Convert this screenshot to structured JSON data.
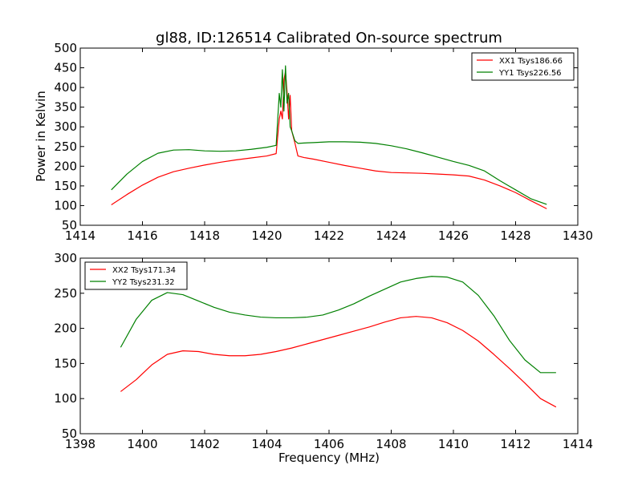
{
  "figure": {
    "title": "gl88, ID:126514 Calibrated On-source spectrum",
    "xlabel": "Frequency (MHz)",
    "ylabel": "Power in Kelvin"
  },
  "chart_data": [
    {
      "type": "line",
      "title": "gl88, ID:126514 Calibrated On-source spectrum",
      "xlabel": "",
      "ylabel": "Power in Kelvin",
      "xlim": [
        1414,
        1430
      ],
      "ylim": [
        50,
        500
      ],
      "xticks": [
        1414,
        1416,
        1418,
        1420,
        1422,
        1424,
        1426,
        1428,
        1430
      ],
      "yticks": [
        50,
        100,
        150,
        200,
        250,
        300,
        350,
        400,
        450,
        500
      ],
      "grid": false,
      "legend_position": "top-right",
      "series": [
        {
          "name": "XX1 Tsys186.66",
          "color": "#ff0000",
          "x": [
            1415,
            1415.5,
            1416,
            1416.5,
            1417,
            1417.5,
            1418,
            1418.5,
            1419,
            1419.5,
            1420,
            1420.3,
            1420.4,
            1420.45,
            1420.5,
            1420.55,
            1420.6,
            1420.65,
            1420.7,
            1420.75,
            1420.8,
            1420.9,
            1421,
            1421.2,
            1421.5,
            1422,
            1422.5,
            1423,
            1423.5,
            1424,
            1424.5,
            1425,
            1425.5,
            1426,
            1426.5,
            1427,
            1427.5,
            1428,
            1428.5,
            1429
          ],
          "values": [
            102,
            128,
            152,
            172,
            186,
            195,
            203,
            210,
            216,
            221,
            226,
            232,
            320,
            340,
            320,
            420,
            440,
            390,
            320,
            380,
            290,
            260,
            226,
            222,
            218,
            210,
            202,
            195,
            188,
            184,
            183,
            182,
            180,
            178,
            175,
            165,
            150,
            133,
            112,
            92
          ]
        },
        {
          "name": "YY1 Tsys226.56",
          "color": "#008000",
          "x": [
            1415,
            1415.5,
            1416,
            1416.5,
            1417,
            1417.5,
            1418,
            1418.5,
            1419,
            1419.5,
            1420,
            1420.3,
            1420.4,
            1420.45,
            1420.5,
            1420.55,
            1420.6,
            1420.65,
            1420.7,
            1420.75,
            1420.8,
            1420.9,
            1421,
            1421.2,
            1421.5,
            1422,
            1422.5,
            1423,
            1423.5,
            1424,
            1424.5,
            1425,
            1425.5,
            1426,
            1426.5,
            1427,
            1427.5,
            1428,
            1428.5,
            1429
          ],
          "values": [
            140,
            180,
            212,
            233,
            241,
            242,
            239,
            238,
            239,
            243,
            248,
            253,
            385,
            350,
            445,
            340,
            455,
            360,
            385,
            300,
            290,
            265,
            258,
            259,
            260,
            262,
            262,
            261,
            258,
            252,
            244,
            234,
            223,
            212,
            202,
            188,
            163,
            140,
            117,
            103
          ]
        }
      ]
    },
    {
      "type": "line",
      "title": "",
      "xlabel": "Frequency (MHz)",
      "ylabel": "",
      "xlim": [
        1398,
        1414
      ],
      "ylim": [
        50,
        300
      ],
      "xticks": [
        1398,
        1400,
        1402,
        1404,
        1406,
        1408,
        1410,
        1412,
        1414
      ],
      "yticks": [
        50,
        100,
        150,
        200,
        250,
        300
      ],
      "grid": false,
      "legend_position": "top-left",
      "series": [
        {
          "name": "XX2 Tsys171.34",
          "color": "#ff0000",
          "x": [
            1399.3,
            1399.8,
            1400.3,
            1400.8,
            1401.3,
            1401.8,
            1402.3,
            1402.8,
            1403.3,
            1403.8,
            1404.3,
            1404.8,
            1405.3,
            1405.8,
            1406.3,
            1406.8,
            1407.3,
            1407.8,
            1408.3,
            1408.8,
            1409.3,
            1409.8,
            1410.3,
            1410.8,
            1411.3,
            1411.8,
            1412.3,
            1412.8,
            1413.3
          ],
          "values": [
            110,
            127,
            148,
            163,
            168,
            167,
            163,
            161,
            161,
            163,
            167,
            172,
            178,
            184,
            190,
            196,
            202,
            209,
            215,
            217,
            215,
            208,
            197,
            182,
            163,
            143,
            122,
            100,
            88
          ]
        },
        {
          "name": "YY2 Tsys231.32",
          "color": "#008000",
          "x": [
            1399.3,
            1399.8,
            1400.3,
            1400.8,
            1401.3,
            1401.8,
            1402.3,
            1402.8,
            1403.3,
            1403.8,
            1404.3,
            1404.8,
            1405.3,
            1405.8,
            1406.3,
            1406.8,
            1407.3,
            1407.8,
            1408.3,
            1408.8,
            1409.3,
            1409.8,
            1410.3,
            1410.8,
            1411.3,
            1411.8,
            1412.3,
            1412.8,
            1413.3
          ],
          "values": [
            173,
            213,
            240,
            251,
            248,
            239,
            230,
            223,
            219,
            216,
            215,
            215,
            216,
            219,
            226,
            235,
            246,
            256,
            266,
            271,
            274,
            273,
            266,
            247,
            218,
            183,
            155,
            137,
            137
          ]
        }
      ]
    }
  ]
}
